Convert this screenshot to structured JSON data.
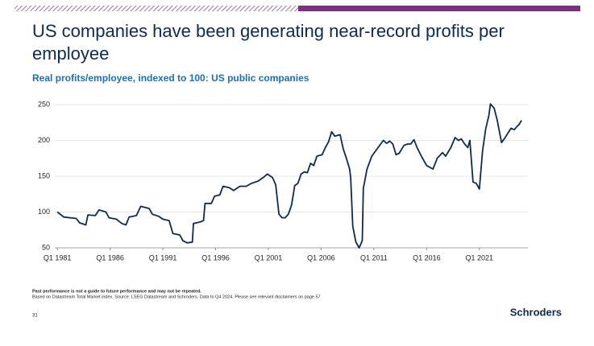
{
  "slide_title": "US companies have been generating near-record profits per employee",
  "chart_data": {
    "type": "line",
    "subtitle": "Real profits/employee, indexed to 100: US public companies",
    "color": "#0d2a52",
    "x": [
      1981,
      1981.6,
      1982.2,
      1982.8,
      1983.1,
      1983.7,
      1983.9,
      1984.6,
      1984.95,
      1985.6,
      1985.9,
      1986.6,
      1987.1,
      1987.5,
      1987.8,
      1988.5,
      1988.9,
      1989.7,
      1990,
      1990.6,
      1991,
      1991.6,
      1991.95,
      1992.6,
      1992.9,
      1993.3,
      1993.8,
      1993.9,
      1994.5,
      1994.85,
      1995,
      1995.6,
      1995.9,
      1996.4,
      1996.7,
      1997.3,
      1997.7,
      1998.3,
      1998.9,
      1999.4,
      2000,
      2000.5,
      2000.9,
      2001.4,
      2001.7,
      2002,
      2002.3,
      2002.6,
      2002.9,
      2003.2,
      2003.5,
      2003.8,
      2004.1,
      2004.4,
      2004.7,
      2005,
      2005.3,
      2005.6,
      2006.1,
      2006.4,
      2006.7,
      2007,
      2007.3,
      2007.8,
      2008.1,
      2008.4,
      2008.7,
      2008.8,
      2009,
      2009.3,
      2009.6,
      2009.75,
      2009.9,
      2010,
      2010.35,
      2010.8,
      2011.4,
      2011.9,
      2012.2,
      2012.5,
      2012.8,
      2013.1,
      2013.4,
      2013.85,
      2014.2,
      2014.5,
      2014.8,
      2015.1,
      2015.5,
      2016,
      2016.6,
      2017,
      2017.5,
      2017.8,
      2018.3,
      2018.7,
      2019,
      2019.3,
      2019.6,
      2019.9,
      2020.1,
      2020.4,
      2020.7,
      2021,
      2021.3,
      2021.6,
      2021.9,
      2022.05,
      2022.4,
      2022.7,
      2022.8,
      2023.1,
      2023.4,
      2023.7,
      2024,
      2024.3,
      2024.6,
      2024.75,
      2025
    ],
    "values": [
      100,
      93,
      92,
      91,
      85,
      82,
      96,
      95,
      103,
      100,
      92,
      90,
      84,
      82,
      93,
      95,
      108,
      105,
      97,
      94,
      90,
      88,
      70,
      68,
      60,
      57,
      58,
      84,
      86,
      88,
      112,
      112,
      122,
      124,
      136,
      134,
      130,
      136,
      136,
      140,
      143,
      148,
      153,
      148,
      138,
      97,
      92,
      92,
      97,
      110,
      137,
      140,
      153,
      156,
      155,
      168,
      165,
      178,
      180,
      190,
      198,
      212,
      206,
      208,
      188,
      175,
      160,
      148,
      80,
      58,
      50,
      55,
      60,
      133,
      160,
      178,
      190,
      200,
      196,
      199,
      195,
      180,
      182,
      193,
      195,
      195,
      201,
      190,
      178,
      165,
      160,
      175,
      183,
      178,
      190,
      204,
      200,
      202,
      195,
      190,
      200,
      142,
      140,
      132,
      185,
      216,
      235,
      251,
      245,
      228,
      220,
      197,
      203,
      210,
      217,
      215,
      220,
      222,
      228
    ],
    "xlim": [
      1980.3,
      2025.6
    ],
    "xticks": [
      {
        "value": 1981,
        "label": "Q1 1981"
      },
      {
        "value": 1986,
        "label": "Q1 1986"
      },
      {
        "value": 1991,
        "label": "Q1 1991"
      },
      {
        "value": 1996,
        "label": "Q1 1996"
      },
      {
        "value": 2001,
        "label": "Q1 2001"
      },
      {
        "value": 2006,
        "label": "Q1 2006"
      },
      {
        "value": 2011,
        "label": "Q1 2011"
      },
      {
        "value": 2016,
        "label": "Q1 2016"
      },
      {
        "value": 2021,
        "label": "Q1 2021"
      }
    ],
    "ylim": [
      50,
      250
    ],
    "yticks": [
      50,
      100,
      150,
      200,
      250
    ],
    "grid": true
  },
  "footer": {
    "disclaimer": "Past performance is not a guide to future performance and may not be repeated.",
    "source": "Based on Datastream Total Market index. Source: LSEG Datastream and Schroders. Data to Q4 2024. Please see relevant disclaimers on page 57",
    "page_number": "31",
    "brand": "Schroders"
  }
}
